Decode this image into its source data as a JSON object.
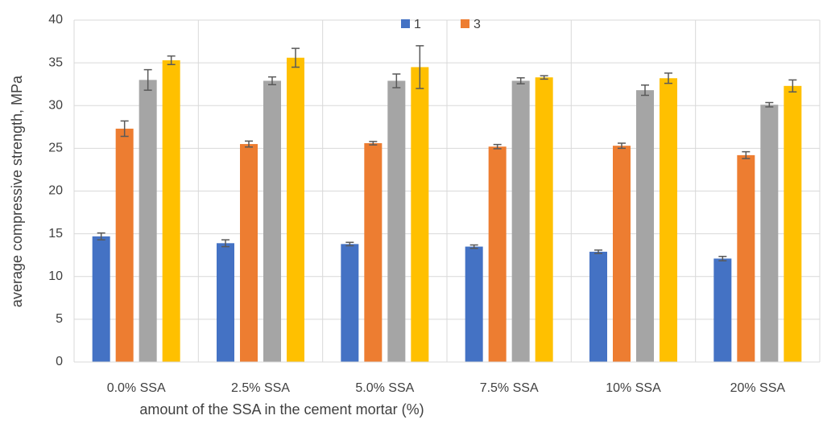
{
  "chart_data": {
    "type": "bar",
    "x_label": "amount of the SSA in the cement mortar (%)",
    "y_label": "average compressive strength, MPa",
    "categories": [
      "0.0% SSA",
      "2.5% SSA",
      "5.0% SSA",
      "7.5% SSA",
      "10% SSA",
      "20% SSA"
    ],
    "series": [
      {
        "name": "1",
        "color": "#4472c4",
        "values": [
          14.7,
          13.9,
          13.8,
          13.5,
          12.9,
          12.1
        ],
        "errors": [
          0.4,
          0.4,
          0.2,
          0.2,
          0.2,
          0.25
        ]
      },
      {
        "name": "3",
        "color": "#ed7d31",
        "values": [
          27.3,
          25.5,
          25.6,
          25.2,
          25.3,
          24.2
        ],
        "errors": [
          0.9,
          0.35,
          0.2,
          0.25,
          0.3,
          0.4
        ]
      },
      {
        "color": "#a5a5a5",
        "values": [
          33.0,
          32.9,
          32.9,
          32.9,
          31.8,
          30.1
        ],
        "errors": [
          1.2,
          0.45,
          0.8,
          0.35,
          0.6,
          0.25
        ]
      },
      {
        "color": "#ffc000",
        "values": [
          35.3,
          35.6,
          34.5,
          33.3,
          33.2,
          32.3
        ],
        "errors": [
          0.5,
          1.1,
          2.5,
          0.2,
          0.6,
          0.7
        ]
      }
    ],
    "ylim": [
      0,
      40
    ],
    "yticks": [
      0,
      5,
      10,
      15,
      20,
      25,
      30,
      35,
      40
    ],
    "grid": true,
    "legend": "top"
  }
}
